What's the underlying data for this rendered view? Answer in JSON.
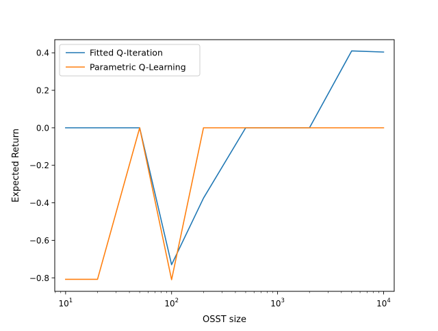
{
  "chart_data": {
    "type": "line",
    "title": "",
    "xlabel": "OSST size",
    "ylabel": "Expected Return",
    "xscale": "log",
    "xlim": [
      7.9,
      12600
    ],
    "ylim": [
      -0.872,
      0.47
    ],
    "x_ticks": [
      {
        "value": 10,
        "base": "10",
        "exp": "1"
      },
      {
        "value": 100,
        "base": "10",
        "exp": "2"
      },
      {
        "value": 1000,
        "base": "10",
        "exp": "3"
      },
      {
        "value": 10000,
        "base": "10",
        "exp": "4"
      }
    ],
    "y_ticks": [
      {
        "value": 0.4,
        "label": "0.4"
      },
      {
        "value": 0.2,
        "label": "0.2"
      },
      {
        "value": 0.0,
        "label": "0.0"
      },
      {
        "value": -0.2,
        "label": "−0.2"
      },
      {
        "value": -0.4,
        "label": "−0.4"
      },
      {
        "value": -0.6,
        "label": "−0.6"
      },
      {
        "value": -0.8,
        "label": "−0.8"
      }
    ],
    "grid": false,
    "legend_position": "upper-left",
    "series": [
      {
        "name": "Fitted Q-Iteration",
        "color": "#1f77b4",
        "x": [
          10,
          20,
          50,
          100,
          200,
          500,
          1000,
          2000,
          5000,
          10000
        ],
        "y": [
          0.0,
          0.0,
          0.0,
          -0.73,
          -0.375,
          0.0,
          0.0,
          0.0,
          0.41,
          0.404
        ]
      },
      {
        "name": "Parametric Q-Learning",
        "color": "#ff7f0e",
        "x": [
          10,
          20,
          50,
          100,
          200,
          500,
          1000,
          2000,
          5000,
          10000
        ],
        "y": [
          -0.808,
          -0.808,
          0.0,
          -0.81,
          0.0,
          0.0,
          0.0,
          0.0,
          0.0,
          0.0
        ]
      }
    ]
  }
}
